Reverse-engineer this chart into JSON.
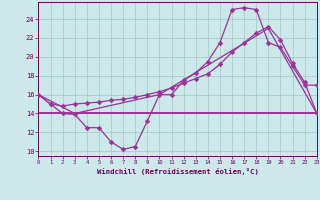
{
  "xlabel": "Windchill (Refroidissement éolien,°C)",
  "bg_color": "#cce8e8",
  "grid_color": "#aacccc",
  "line_color": "#993399",
  "x_ticks": [
    0,
    1,
    2,
    3,
    4,
    5,
    6,
    7,
    8,
    9,
    10,
    11,
    12,
    13,
    14,
    15,
    16,
    17,
    18,
    19,
    20,
    21,
    22,
    23
  ],
  "y_ticks": [
    10,
    12,
    14,
    16,
    18,
    20,
    22,
    24
  ],
  "xlim": [
    0,
    23
  ],
  "ylim": [
    9.5,
    25.8
  ],
  "series1_x": [
    0,
    1,
    2,
    3,
    4,
    5,
    6,
    7,
    8,
    9,
    10,
    11,
    12,
    13,
    14,
    15,
    16,
    17,
    18,
    19,
    20,
    21,
    22,
    23
  ],
  "series1_y": [
    16.0,
    15.0,
    14.0,
    13.9,
    12.5,
    12.5,
    11.0,
    10.2,
    10.5,
    13.2,
    16.0,
    16.0,
    17.5,
    18.3,
    19.5,
    21.5,
    25.0,
    25.2,
    25.0,
    21.5,
    21.0,
    19.0,
    17.0,
    17.0
  ],
  "series2_x": [
    0,
    1,
    2,
    3,
    4,
    5,
    6,
    7,
    8,
    9,
    10,
    11,
    12,
    13,
    14,
    15,
    16,
    17,
    18,
    19,
    20,
    21,
    22,
    23
  ],
  "series2_y": [
    16.0,
    15.0,
    14.8,
    15.0,
    15.1,
    15.2,
    15.4,
    15.5,
    15.7,
    16.0,
    16.3,
    16.7,
    17.2,
    17.7,
    18.2,
    19.2,
    20.5,
    21.5,
    22.5,
    23.2,
    21.8,
    19.3,
    17.3,
    14.0
  ],
  "series3_x": [
    0,
    23
  ],
  "series3_y": [
    14.0,
    14.0
  ],
  "series4_x": [
    0,
    3,
    10,
    19,
    23
  ],
  "series4_y": [
    16.0,
    14.0,
    16.0,
    23.0,
    14.0
  ],
  "markersize": 2.5,
  "linewidth": 0.9
}
